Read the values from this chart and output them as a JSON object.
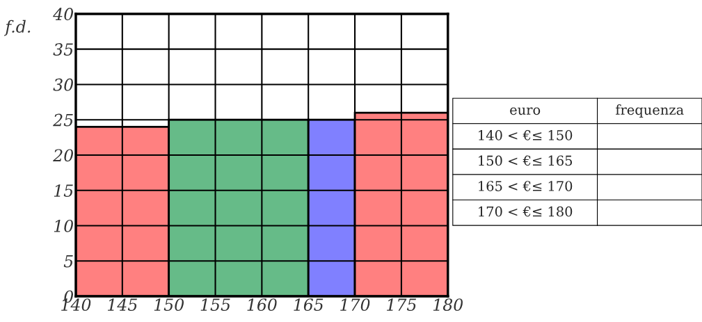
{
  "chart_data": {
    "type": "histogram",
    "ylabel": "f.d.",
    "bins": [
      140,
      150,
      165,
      170,
      180
    ],
    "values": [
      24,
      25,
      25,
      26
    ],
    "colors": [
      "#ff8080",
      "#66bb88",
      "#8080ff",
      "#ff8080"
    ],
    "xlim": [
      140,
      180
    ],
    "xticks": [
      140,
      145,
      150,
      155,
      160,
      165,
      170,
      175,
      180
    ],
    "ylim": [
      0,
      40
    ],
    "yticks": [
      0,
      5,
      10,
      15,
      20,
      25,
      30,
      35,
      40
    ],
    "grid": true,
    "annotations": [
      "euro",
      "frequenza",
      "140 < €≤ 150",
      "150 < €≤ 165",
      "165 < €≤ 170",
      "170 < €≤ 180"
    ]
  }
}
